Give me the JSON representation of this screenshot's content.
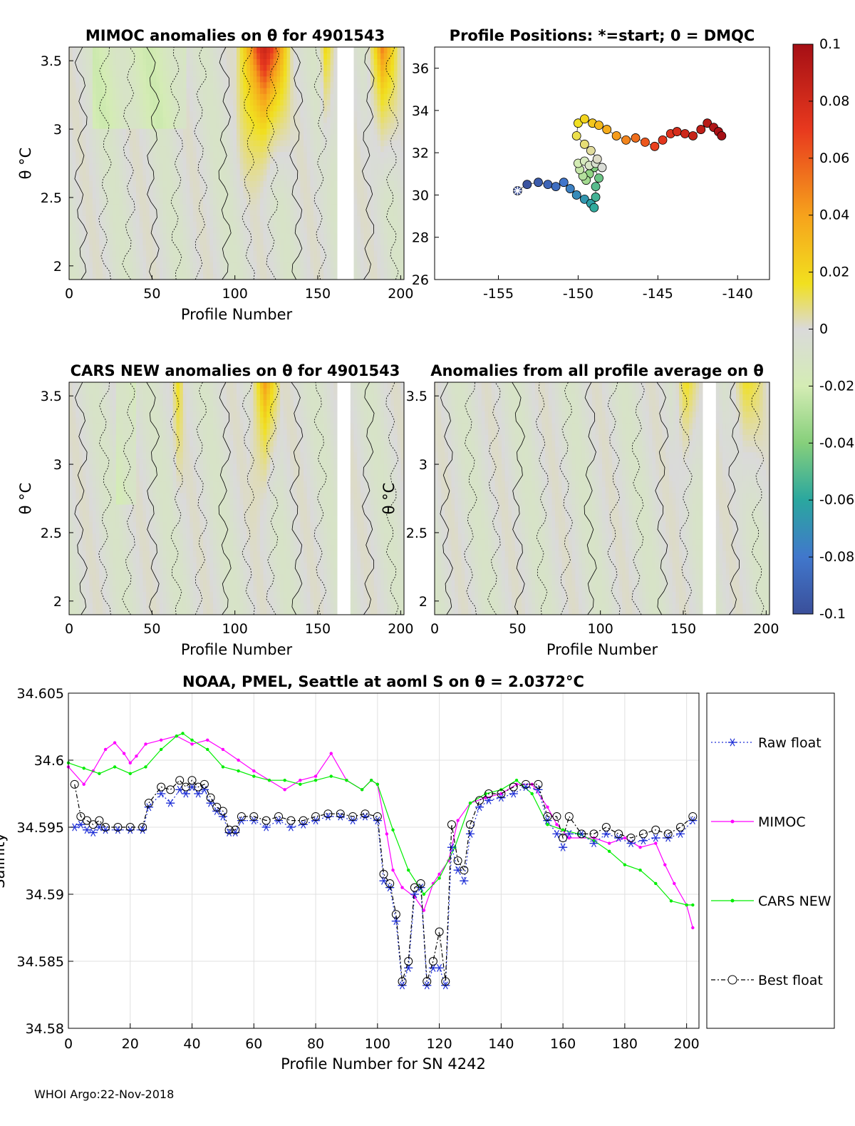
{
  "footer": "WHOI Argo:22-Nov-2018",
  "colorbar": {
    "ticks": [
      "0.1",
      "0.08",
      "0.06",
      "0.04",
      "0.02",
      "0",
      "-0.02",
      "-0.04",
      "-0.06",
      "-0.08",
      "-0.1"
    ]
  },
  "chart_data": [
    {
      "type": "heatmap",
      "title": "MIMOC anomalies on θ  for 4901543",
      "xlabel": "Profile Number",
      "ylabel": "θ °C",
      "xlim": [
        0,
        202
      ],
      "ylim": [
        1.9,
        3.6
      ],
      "xticks": [
        "0",
        "50",
        "100",
        "150",
        "200"
      ],
      "yticks": [
        "3.5",
        "3",
        "2.5",
        "2"
      ],
      "gaps": [
        [
          162,
          171
        ]
      ],
      "hot_regions": [
        [
          100,
          135,
          0.09
        ],
        [
          150,
          160,
          0.03
        ],
        [
          178,
          200,
          0.05
        ]
      ]
    },
    {
      "type": "scatter",
      "title": "Profile Positions: *=start; 0 = DMQC",
      "xlim": [
        -159,
        -138
      ],
      "ylim": [
        26,
        37
      ],
      "xticks": [
        "-155",
        "-150",
        "-145",
        "-140"
      ],
      "yticks": [
        "26",
        "28",
        "30",
        "32",
        "34",
        "36"
      ],
      "track_lon": [
        -153.8,
        -153.2,
        -152.5,
        -151.9,
        -151.4,
        -150.9,
        -150.5,
        -150.1,
        -149.6,
        -149.2,
        -149.0,
        -148.9,
        -148.9,
        -148.7,
        -149.0,
        -149.3,
        -149.5,
        -149.7,
        -149.9,
        -150.0,
        -149.6,
        -149.3,
        -148.9,
        -148.5,
        -148.8,
        -149.2,
        -149.6,
        -150.1,
        -150.0,
        -149.6,
        -149.1,
        -148.7,
        -148.2,
        -147.6,
        -147.0,
        -146.4,
        -145.8,
        -145.2,
        -144.7,
        -144.2,
        -143.8,
        -143.3,
        -142.8,
        -142.3,
        -141.9,
        -141.5,
        -141.2,
        -141.0
      ],
      "track_lat": [
        30.2,
        30.5,
        30.6,
        30.5,
        30.4,
        30.6,
        30.3,
        30.0,
        29.8,
        29.6,
        29.4,
        29.9,
        30.4,
        30.8,
        31.3,
        31.0,
        30.7,
        30.9,
        31.2,
        31.5,
        31.6,
        31.4,
        31.5,
        31.3,
        31.7,
        32.1,
        32.4,
        32.8,
        33.4,
        33.6,
        33.4,
        33.3,
        33.1,
        32.8,
        32.6,
        32.7,
        32.5,
        32.3,
        32.6,
        32.9,
        33.0,
        32.9,
        32.8,
        33.1,
        33.4,
        33.2,
        33.0,
        32.8
      ]
    },
    {
      "type": "heatmap",
      "title": "CARS NEW anomalies on θ for 4901543",
      "xlabel": "Profile Number",
      "ylabel": "θ °C",
      "xlim": [
        0,
        202
      ],
      "ylim": [
        1.9,
        3.6
      ],
      "xticks": [
        "0",
        "50",
        "100",
        "150",
        "200"
      ],
      "yticks": [
        "3.5",
        "3",
        "2.5",
        "2"
      ],
      "gaps": [
        [
          162,
          169
        ]
      ],
      "hot_regions": [
        [
          108,
          128,
          0.05
        ],
        [
          62,
          70,
          0.02
        ]
      ]
    },
    {
      "type": "heatmap",
      "title": "Anomalies from all profile average on θ",
      "xlabel": "Profile Number",
      "ylabel": "θ °C",
      "xlim": [
        0,
        202
      ],
      "ylim": [
        1.9,
        3.6
      ],
      "xticks": [
        "0",
        "50",
        "100",
        "150",
        "200"
      ],
      "yticks": [
        "3.5",
        "3",
        "2.5",
        "2"
      ],
      "gaps": [
        [
          162,
          170
        ]
      ],
      "hot_regions": [
        [
          143,
          160,
          0.03
        ],
        [
          175,
          200,
          0.025
        ]
      ]
    },
    {
      "type": "line",
      "title": "NOAA, PMEL, Seattle at aoml S on θ = 2.0372°C",
      "xlabel": "Profile Number for SN 4242",
      "ylabel": "Salinity",
      "xlim": [
        0,
        204
      ],
      "ylim": [
        34.58,
        34.605
      ],
      "xticks": [
        "0",
        "20",
        "40",
        "60",
        "80",
        "100",
        "120",
        "140",
        "160",
        "180",
        "200"
      ],
      "yticks": [
        "34.605",
        "34.6",
        "34.595",
        "34.59",
        "34.585",
        "34.58"
      ],
      "legend": [
        "Raw float",
        "MIMOC",
        "CARS NEW",
        "Best float"
      ],
      "series": [
        {
          "name": "MIMOC",
          "color": "#ff00ff",
          "x": [
            0,
            5,
            8,
            12,
            15,
            18,
            20,
            22,
            25,
            30,
            35,
            40,
            45,
            50,
            55,
            60,
            65,
            70,
            75,
            80,
            85,
            90,
            95,
            98,
            100,
            103,
            105,
            108,
            112,
            115,
            118,
            120,
            123,
            126,
            130,
            135,
            140,
            145,
            150,
            155,
            158,
            162,
            170,
            175,
            180,
            185,
            190,
            193,
            196,
            200,
            202
          ],
          "y": [
            34.5995,
            34.5982,
            34.5992,
            34.6008,
            34.6013,
            34.6005,
            34.5998,
            34.6003,
            34.6012,
            34.6015,
            34.6018,
            34.6012,
            34.6015,
            34.6008,
            34.6,
            34.5992,
            34.5985,
            34.5978,
            34.5985,
            34.5988,
            34.6005,
            34.5985,
            34.5978,
            34.5985,
            34.5982,
            34.5945,
            34.5918,
            34.5905,
            34.5898,
            34.5888,
            34.5908,
            34.5915,
            34.5925,
            34.5955,
            34.5968,
            34.5972,
            34.5975,
            34.5982,
            34.5982,
            34.5965,
            34.5952,
            34.5942,
            34.5942,
            34.5938,
            34.5942,
            34.5935,
            34.5938,
            34.5922,
            34.5908,
            34.5892,
            34.5875
          ]
        },
        {
          "name": "CARS NEW",
          "color": "#00ee00",
          "x": [
            0,
            5,
            10,
            15,
            20,
            25,
            30,
            35,
            37,
            40,
            45,
            50,
            55,
            60,
            65,
            70,
            75,
            80,
            85,
            90,
            95,
            98,
            100,
            105,
            110,
            115,
            120,
            125,
            130,
            135,
            140,
            145,
            150,
            155,
            160,
            165,
            170,
            175,
            180,
            185,
            190,
            195,
            200,
            202
          ],
          "y": [
            34.5998,
            34.5994,
            34.599,
            34.5995,
            34.599,
            34.5995,
            34.6008,
            34.6018,
            34.602,
            34.6015,
            34.6008,
            34.5995,
            34.5992,
            34.5988,
            34.5985,
            34.5985,
            34.5982,
            34.5985,
            34.5988,
            34.5985,
            34.5978,
            34.5985,
            34.5982,
            34.5948,
            34.5918,
            34.59,
            34.5912,
            34.5935,
            34.5968,
            34.5975,
            34.5978,
            34.5985,
            34.5975,
            34.5952,
            34.5948,
            34.5945,
            34.594,
            34.5932,
            34.5922,
            34.5918,
            34.5908,
            34.5895,
            34.5892,
            34.5892
          ]
        },
        {
          "name": "Raw float",
          "color": "#1e2fd6",
          "x": [
            2,
            4,
            6,
            8,
            10,
            12,
            16,
            20,
            24,
            26,
            30,
            33,
            36,
            38,
            40,
            42,
            44,
            46,
            48,
            50,
            52,
            54,
            56,
            60,
            64,
            68,
            72,
            76,
            80,
            84,
            88,
            92,
            96,
            100,
            102,
            104,
            106,
            108,
            110,
            112,
            114,
            116,
            118,
            120,
            122,
            124,
            126,
            128,
            130,
            133,
            136,
            140,
            144,
            148,
            152,
            155,
            158,
            160,
            162,
            166,
            170,
            174,
            178,
            182,
            186,
            190,
            194,
            198,
            202
          ],
          "y": [
            34.595,
            34.5952,
            34.5948,
            34.5946,
            34.595,
            34.5948,
            34.5948,
            34.5948,
            34.5948,
            34.5965,
            34.5975,
            34.5968,
            34.5978,
            34.5975,
            34.598,
            34.5975,
            34.5978,
            34.5968,
            34.5962,
            34.5958,
            34.5946,
            34.5946,
            34.5955,
            34.5955,
            34.595,
            34.5955,
            34.595,
            34.5952,
            34.5955,
            34.5958,
            34.5958,
            34.5955,
            34.5958,
            34.5955,
            34.591,
            34.5905,
            34.588,
            34.5832,
            34.5845,
            34.59,
            34.5905,
            34.5832,
            34.5845,
            34.5845,
            34.5832,
            34.5935,
            34.5918,
            34.591,
            34.5945,
            34.5965,
            34.597,
            34.5972,
            34.5975,
            34.598,
            34.5978,
            34.5955,
            34.5945,
            34.5935,
            34.5945,
            34.5945,
            34.5938,
            34.5945,
            34.5942,
            34.5938,
            34.594,
            34.5942,
            34.5942,
            34.5945,
            34.5955
          ]
        },
        {
          "name": "Best float",
          "color": "#000000",
          "x": [
            2,
            4,
            6,
            8,
            10,
            12,
            16,
            20,
            24,
            26,
            30,
            33,
            36,
            38,
            40,
            42,
            44,
            46,
            48,
            50,
            52,
            54,
            56,
            60,
            64,
            68,
            72,
            76,
            80,
            84,
            88,
            92,
            96,
            100,
            102,
            104,
            106,
            108,
            110,
            112,
            114,
            116,
            118,
            120,
            122,
            124,
            126,
            128,
            130,
            133,
            136,
            140,
            144,
            148,
            152,
            155,
            158,
            160,
            162,
            166,
            170,
            174,
            178,
            182,
            186,
            190,
            194,
            198,
            202
          ],
          "y": [
            34.5982,
            34.5958,
            34.5955,
            34.5952,
            34.5955,
            34.595,
            34.595,
            34.595,
            34.595,
            34.5968,
            34.598,
            34.5978,
            34.5985,
            34.598,
            34.5985,
            34.598,
            34.5982,
            34.5972,
            34.5965,
            34.5962,
            34.5948,
            34.5948,
            34.5958,
            34.5958,
            34.5955,
            34.5958,
            34.5955,
            34.5955,
            34.5958,
            34.596,
            34.596,
            34.5958,
            34.596,
            34.5958,
            34.5915,
            34.5908,
            34.5885,
            34.5835,
            34.585,
            34.5905,
            34.5908,
            34.5835,
            34.585,
            34.5872,
            34.5835,
            34.5952,
            34.5925,
            34.5918,
            34.5952,
            34.597,
            34.5975,
            34.5975,
            34.598,
            34.5982,
            34.5982,
            34.5958,
            34.5958,
            34.5942,
            34.5958,
            34.5945,
            34.5945,
            34.595,
            34.5945,
            34.5942,
            34.5945,
            34.5948,
            34.5945,
            34.595,
            34.5958
          ]
        }
      ]
    }
  ]
}
